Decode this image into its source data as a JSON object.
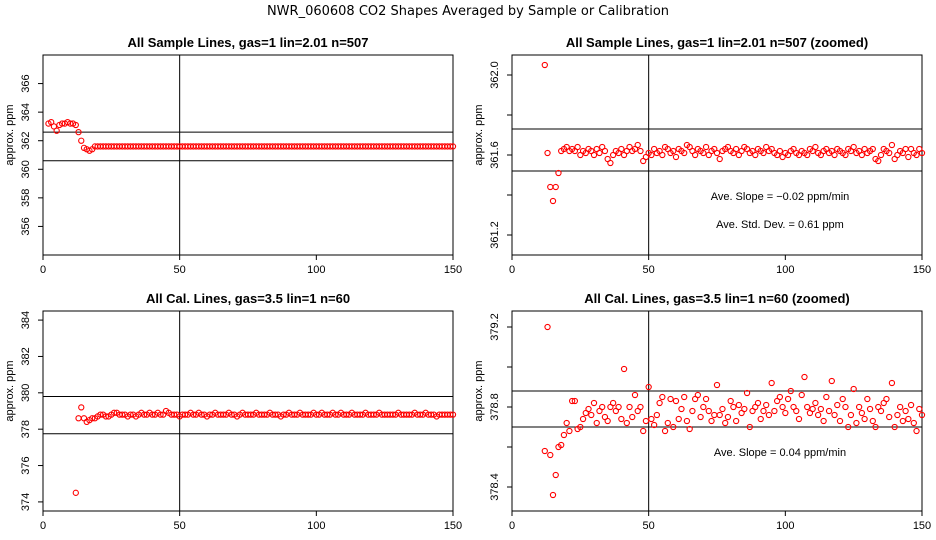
{
  "suptitle": "NWR_060608  CO2 Shapes Averaged by Sample or Calibration",
  "chart_data": [
    {
      "type": "scatter",
      "title": "All Sample Lines, gas=1 lin=2.01 n=507",
      "xlabel": "",
      "ylabel": "approx. ppm",
      "xlim": [
        0,
        150
      ],
      "ylim": [
        354,
        368
      ],
      "xticks": [
        0,
        50,
        100,
        150
      ],
      "yticks": [
        356,
        358,
        360,
        362,
        364,
        366
      ],
      "marker_color": "#ff0000",
      "vline": 50,
      "hlines": [
        360.6,
        362.6
      ],
      "annotations": [],
      "x": [
        2,
        3,
        4,
        5,
        6,
        7,
        8,
        9,
        10,
        11,
        12,
        13,
        14,
        15,
        16,
        17,
        18,
        19,
        20,
        21,
        22,
        23,
        24,
        25,
        26,
        27,
        28,
        29,
        30,
        31,
        32,
        33,
        34,
        35,
        36,
        37,
        38,
        39,
        40,
        41,
        42,
        43,
        44,
        45,
        46,
        47,
        48,
        49,
        50,
        51,
        52,
        53,
        54,
        55,
        56,
        57,
        58,
        59,
        60,
        61,
        62,
        63,
        64,
        65,
        66,
        67,
        68,
        69,
        70,
        71,
        72,
        73,
        74,
        75,
        76,
        77,
        78,
        79,
        80,
        81,
        82,
        83,
        84,
        85,
        86,
        87,
        88,
        89,
        90,
        91,
        92,
        93,
        94,
        95,
        96,
        97,
        98,
        99,
        100,
        101,
        102,
        103,
        104,
        105,
        106,
        107,
        108,
        109,
        110,
        111,
        112,
        113,
        114,
        115,
        116,
        117,
        118,
        119,
        120,
        121,
        122,
        123,
        124,
        125,
        126,
        127,
        128,
        129,
        130,
        131,
        132,
        133,
        134,
        135,
        136,
        137,
        138,
        139,
        140,
        141,
        142,
        143,
        144,
        145,
        146,
        147,
        148,
        149,
        150
      ],
      "y": [
        363.2,
        363.3,
        363.0,
        362.7,
        363.1,
        363.2,
        363.2,
        363.3,
        363.2,
        363.2,
        363.1,
        362.6,
        362.0,
        361.5,
        361.4,
        361.3,
        361.4,
        361.6,
        361.6,
        361.6,
        361.6,
        361.6,
        361.6,
        361.6,
        361.6,
        361.6,
        361.6,
        361.6,
        361.6,
        361.6,
        361.6,
        361.6,
        361.6,
        361.6,
        361.6,
        361.6,
        361.6,
        361.6,
        361.6,
        361.6,
        361.6,
        361.6,
        361.6,
        361.6,
        361.6,
        361.6,
        361.6,
        361.6,
        361.6,
        361.6,
        361.6,
        361.6,
        361.6,
        361.6,
        361.6,
        361.6,
        361.6,
        361.6,
        361.6,
        361.6,
        361.6,
        361.6,
        361.6,
        361.6,
        361.6,
        361.6,
        361.6,
        361.6,
        361.6,
        361.6,
        361.6,
        361.6,
        361.6,
        361.6,
        361.6,
        361.6,
        361.6,
        361.6,
        361.6,
        361.6,
        361.6,
        361.6,
        361.6,
        361.6,
        361.6,
        361.6,
        361.6,
        361.6,
        361.6,
        361.6,
        361.6,
        361.6,
        361.6,
        361.6,
        361.6,
        361.6,
        361.6,
        361.6,
        361.6,
        361.6,
        361.6,
        361.6,
        361.6,
        361.6,
        361.6,
        361.6,
        361.6,
        361.6,
        361.6,
        361.6,
        361.6,
        361.6,
        361.6,
        361.6,
        361.6,
        361.6,
        361.6,
        361.6,
        361.6,
        361.6,
        361.6,
        361.6,
        361.6,
        361.6,
        361.6,
        361.6,
        361.6,
        361.6,
        361.6,
        361.6,
        361.6,
        361.6,
        361.6,
        361.6,
        361.6,
        361.6,
        361.6,
        361.6,
        361.6,
        361.6,
        361.6,
        361.6,
        361.6,
        361.6,
        361.6,
        361.6,
        361.6,
        361.6,
        361.6
      ]
    },
    {
      "type": "scatter",
      "title": "All Sample Lines, gas=1 lin=2.01 n=507 (zoomed)",
      "xlabel": "",
      "ylabel": "approx. ppm",
      "xlim": [
        0,
        150
      ],
      "ylim": [
        361.1,
        362.1
      ],
      "xticks": [
        0,
        50,
        100,
        150
      ],
      "yticks": [
        361.2,
        361.4,
        361.6,
        361.8,
        362.0
      ],
      "ytick_labels": [
        "361.2",
        "",
        "361.6",
        "",
        "362.0"
      ],
      "marker_color": "#ff0000",
      "vline": 50,
      "hlines": [
        361.52,
        361.73
      ],
      "annotations": [
        "Ave. Slope =  −0.02  ppm/min",
        "Ave. Std. Dev. =  0.61  ppm"
      ],
      "x": [
        12,
        13,
        14,
        15,
        16,
        17,
        18,
        19,
        20,
        21,
        22,
        23,
        24,
        25,
        26,
        27,
        28,
        29,
        30,
        31,
        32,
        33,
        34,
        35,
        36,
        37,
        38,
        39,
        40,
        41,
        42,
        43,
        44,
        45,
        46,
        47,
        48,
        49,
        50,
        51,
        52,
        53,
        54,
        55,
        56,
        57,
        58,
        59,
        60,
        61,
        62,
        63,
        64,
        65,
        66,
        67,
        68,
        69,
        70,
        71,
        72,
        73,
        74,
        75,
        76,
        77,
        78,
        79,
        80,
        81,
        82,
        83,
        84,
        85,
        86,
        87,
        88,
        89,
        90,
        91,
        92,
        93,
        94,
        95,
        96,
        97,
        98,
        99,
        100,
        101,
        102,
        103,
        104,
        105,
        106,
        107,
        108,
        109,
        110,
        111,
        112,
        113,
        114,
        115,
        116,
        117,
        118,
        119,
        120,
        121,
        122,
        123,
        124,
        125,
        126,
        127,
        128,
        129,
        130,
        131,
        132,
        133,
        134,
        135,
        136,
        137,
        138,
        139,
        140,
        141,
        142,
        143,
        144,
        145,
        146,
        147,
        148,
        149,
        150
      ],
      "y": [
        362.05,
        361.61,
        361.44,
        361.37,
        361.44,
        361.51,
        361.62,
        361.63,
        361.64,
        361.62,
        361.63,
        361.62,
        361.64,
        361.6,
        361.62,
        361.61,
        361.63,
        361.62,
        361.6,
        361.63,
        361.61,
        361.64,
        361.62,
        361.58,
        361.56,
        361.6,
        361.62,
        361.61,
        361.63,
        361.6,
        361.62,
        361.64,
        361.62,
        361.63,
        361.65,
        361.62,
        361.57,
        361.59,
        361.61,
        361.6,
        361.63,
        361.61,
        361.62,
        361.6,
        361.64,
        361.63,
        361.61,
        361.62,
        361.59,
        361.63,
        361.62,
        361.61,
        361.65,
        361.64,
        361.62,
        361.6,
        361.63,
        361.62,
        361.61,
        361.64,
        361.6,
        361.62,
        361.63,
        361.61,
        361.58,
        361.62,
        361.63,
        361.64,
        361.62,
        361.61,
        361.63,
        361.6,
        361.62,
        361.64,
        361.63,
        361.61,
        361.62,
        361.6,
        361.63,
        361.62,
        361.61,
        361.64,
        361.62,
        361.63,
        361.61,
        361.6,
        361.62,
        361.59,
        361.61,
        361.6,
        361.62,
        361.63,
        361.61,
        361.6,
        361.62,
        361.61,
        361.6,
        361.63,
        361.62,
        361.64,
        361.61,
        361.6,
        361.62,
        361.63,
        361.61,
        361.62,
        361.6,
        361.63,
        361.62,
        361.61,
        361.6,
        361.63,
        361.62,
        361.64,
        361.61,
        361.62,
        361.6,
        361.63,
        361.61,
        361.62,
        361.63,
        361.58,
        361.57,
        361.6,
        361.63,
        361.62,
        361.61,
        361.65,
        361.58,
        361.6,
        361.62,
        361.61,
        361.63,
        361.59,
        361.63,
        361.61,
        361.6,
        361.63,
        361.61
      ]
    },
    {
      "type": "scatter",
      "title": "All Cal. Lines, gas=3.5 lin=1 n=60",
      "xlabel": "",
      "ylabel": "approx. ppm",
      "xlim": [
        0,
        150
      ],
      "ylim": [
        373.5,
        384.5
      ],
      "xticks": [
        0,
        50,
        100,
        150
      ],
      "yticks": [
        374,
        376,
        378,
        380,
        382,
        384
      ],
      "marker_color": "#ff0000",
      "vline": 50,
      "hlines": [
        377.75,
        379.8
      ],
      "annotations": [],
      "x": [
        12,
        13,
        14,
        15,
        16,
        17,
        18,
        19,
        20,
        21,
        22,
        23,
        24,
        25,
        26,
        27,
        28,
        29,
        30,
        31,
        32,
        33,
        34,
        35,
        36,
        37,
        38,
        39,
        40,
        41,
        42,
        43,
        44,
        45,
        46,
        47,
        48,
        49,
        50,
        51,
        52,
        53,
        54,
        55,
        56,
        57,
        58,
        59,
        60,
        61,
        62,
        63,
        64,
        65,
        66,
        67,
        68,
        69,
        70,
        71,
        72,
        73,
        74,
        75,
        76,
        77,
        78,
        79,
        80,
        81,
        82,
        83,
        84,
        85,
        86,
        87,
        88,
        89,
        90,
        91,
        92,
        93,
        94,
        95,
        96,
        97,
        98,
        99,
        100,
        101,
        102,
        103,
        104,
        105,
        106,
        107,
        108,
        109,
        110,
        111,
        112,
        113,
        114,
        115,
        116,
        117,
        118,
        119,
        120,
        121,
        122,
        123,
        124,
        125,
        126,
        127,
        128,
        129,
        130,
        131,
        132,
        133,
        134,
        135,
        136,
        137,
        138,
        139,
        140,
        141,
        142,
        143,
        144,
        145,
        146,
        147,
        148,
        149,
        150
      ],
      "y": [
        374.5,
        378.6,
        379.2,
        378.6,
        378.4,
        378.5,
        378.6,
        378.6,
        378.7,
        378.8,
        378.8,
        378.7,
        378.7,
        378.8,
        378.9,
        378.9,
        378.8,
        378.8,
        378.8,
        378.7,
        378.8,
        378.8,
        378.7,
        378.8,
        378.9,
        378.8,
        378.8,
        378.9,
        378.8,
        378.8,
        378.9,
        378.8,
        378.8,
        379.0,
        378.9,
        378.8,
        378.8,
        378.8,
        378.7,
        378.8,
        378.8,
        378.8,
        378.9,
        378.8,
        378.8,
        378.9,
        378.8,
        378.8,
        378.7,
        378.8,
        378.8,
        378.9,
        378.8,
        378.8,
        378.8,
        378.8,
        378.9,
        378.8,
        378.8,
        378.7,
        378.8,
        378.9,
        378.8,
        378.8,
        378.8,
        378.8,
        378.9,
        378.8,
        378.8,
        378.8,
        378.8,
        378.9,
        378.8,
        378.8,
        378.8,
        378.7,
        378.8,
        378.8,
        378.9,
        378.8,
        378.8,
        378.8,
        378.9,
        378.8,
        378.8,
        378.8,
        378.8,
        378.9,
        378.8,
        378.8,
        378.9,
        378.8,
        378.8,
        378.8,
        378.9,
        378.8,
        378.8,
        378.9,
        378.8,
        378.8,
        378.8,
        378.9,
        378.8,
        378.8,
        378.8,
        378.8,
        378.9,
        378.8,
        378.8,
        378.8,
        378.8,
        378.9,
        378.8,
        378.8,
        378.8,
        378.8,
        378.8,
        378.8,
        378.9,
        378.8,
        378.8,
        378.8,
        378.8,
        378.8,
        378.9,
        378.8,
        378.8,
        378.8,
        378.9,
        378.8,
        378.8,
        378.8,
        378.7,
        378.8,
        378.8,
        378.8,
        378.8,
        378.8,
        378.8
      ]
    },
    {
      "type": "scatter",
      "title": "All Cal. Lines, gas=3.5 lin=1 n=60 (zoomed)",
      "xlabel": "",
      "ylabel": "approx. ppm",
      "xlim": [
        0,
        150
      ],
      "ylim": [
        378.28,
        379.28
      ],
      "xticks": [
        0,
        50,
        100,
        150
      ],
      "yticks": [
        378.4,
        378.6,
        378.8,
        379.0,
        379.2
      ],
      "ytick_labels": [
        "378.4",
        "",
        "378.8",
        "",
        "379.2"
      ],
      "marker_color": "#ff0000",
      "vline": 50,
      "hlines": [
        378.7,
        378.88
      ],
      "annotations": [
        "Ave. Slope =  0.04  ppm/min"
      ],
      "x": [
        12,
        13,
        14,
        15,
        16,
        17,
        18,
        19,
        20,
        21,
        22,
        23,
        24,
        25,
        26,
        27,
        28,
        29,
        30,
        31,
        32,
        33,
        34,
        35,
        36,
        37,
        38,
        39,
        40,
        41,
        42,
        43,
        44,
        45,
        46,
        47,
        48,
        49,
        50,
        51,
        52,
        53,
        54,
        55,
        56,
        57,
        58,
        59,
        60,
        61,
        62,
        63,
        64,
        65,
        66,
        67,
        68,
        69,
        70,
        71,
        72,
        73,
        74,
        75,
        76,
        77,
        78,
        79,
        80,
        81,
        82,
        83,
        84,
        85,
        86,
        87,
        88,
        89,
        90,
        91,
        92,
        93,
        94,
        95,
        96,
        97,
        98,
        99,
        100,
        101,
        102,
        103,
        104,
        105,
        106,
        107,
        108,
        109,
        110,
        111,
        112,
        113,
        114,
        115,
        116,
        117,
        118,
        119,
        120,
        121,
        122,
        123,
        124,
        125,
        126,
        127,
        128,
        129,
        130,
        131,
        132,
        133,
        134,
        135,
        136,
        137,
        138,
        139,
        140,
        141,
        142,
        143,
        144,
        145,
        146,
        147,
        148,
        149,
        150
      ],
      "y": [
        378.58,
        379.2,
        378.56,
        378.36,
        378.46,
        378.6,
        378.61,
        378.66,
        378.72,
        378.68,
        378.83,
        378.83,
        378.69,
        378.7,
        378.74,
        378.77,
        378.79,
        378.76,
        378.82,
        378.72,
        378.78,
        378.8,
        378.75,
        378.73,
        378.8,
        378.82,
        378.78,
        378.8,
        378.74,
        378.99,
        378.72,
        378.8,
        378.75,
        378.86,
        378.78,
        378.8,
        378.68,
        378.73,
        378.9,
        378.74,
        378.71,
        378.76,
        378.82,
        378.85,
        378.68,
        378.72,
        378.84,
        378.7,
        378.83,
        378.74,
        378.79,
        378.85,
        378.73,
        378.69,
        378.78,
        378.84,
        378.86,
        378.75,
        378.8,
        378.84,
        378.78,
        378.73,
        378.76,
        378.91,
        378.76,
        378.79,
        378.72,
        378.75,
        378.83,
        378.8,
        378.73,
        378.81,
        378.77,
        378.79,
        378.87,
        378.7,
        378.78,
        378.8,
        378.82,
        378.74,
        378.78,
        378.81,
        378.76,
        378.92,
        378.78,
        378.83,
        378.85,
        378.8,
        378.77,
        378.84,
        378.88,
        378.8,
        378.78,
        378.74,
        378.86,
        378.95,
        378.8,
        378.77,
        378.79,
        378.82,
        378.76,
        378.79,
        378.73,
        378.85,
        378.78,
        378.93,
        378.76,
        378.81,
        378.73,
        378.84,
        378.8,
        378.7,
        378.76,
        378.89,
        378.72,
        378.8,
        378.77,
        378.74,
        378.84,
        378.79,
        378.73,
        378.7,
        378.8,
        378.78,
        378.82,
        378.84,
        378.75,
        378.92,
        378.7,
        378.76,
        378.8,
        378.73,
        378.78,
        378.74,
        378.81,
        378.72,
        378.68,
        378.79,
        378.76
      ]
    }
  ]
}
